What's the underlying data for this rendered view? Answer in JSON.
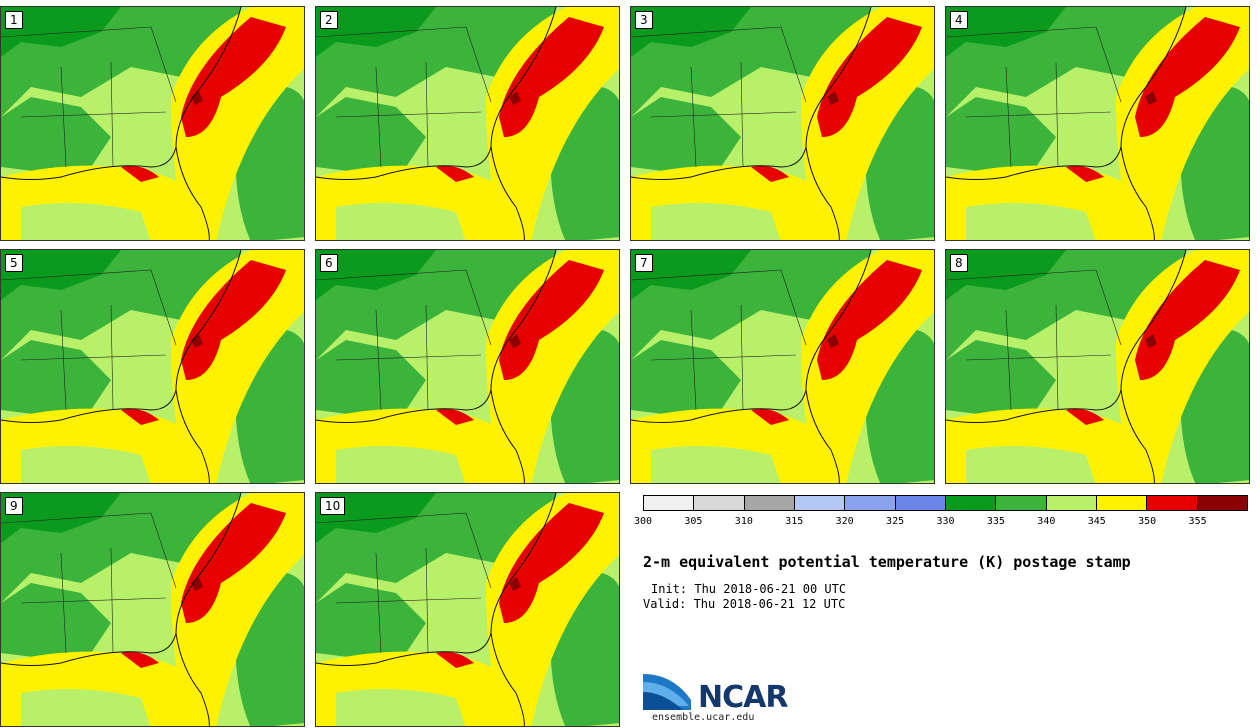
{
  "panels": [
    {
      "label": "1"
    },
    {
      "label": "2"
    },
    {
      "label": "3"
    },
    {
      "label": "4"
    },
    {
      "label": "5"
    },
    {
      "label": "6"
    },
    {
      "label": "7"
    },
    {
      "label": "8"
    },
    {
      "label": "9"
    },
    {
      "label": "10"
    }
  ],
  "colorbar": {
    "colors": [
      "#f0f0f0",
      "#d9d9d9",
      "#a6a6a6",
      "#b4c8f5",
      "#8aa3f0",
      "#6b86ea",
      "#0a9a1e",
      "#3cb43c",
      "#b9f06a",
      "#fff200",
      "#e60000",
      "#8b0000"
    ],
    "ticks": [
      "300",
      "305",
      "310",
      "315",
      "320",
      "325",
      "330",
      "335",
      "340",
      "345",
      "350",
      "355"
    ]
  },
  "title": "2-m equivalent potential temperature (K) postage stamp",
  "init": "Init: Thu 2018-06-21 00 UTC",
  "valid": "Valid: Thu 2018-06-21 12 UTC",
  "logo_text": "NCAR",
  "url": "ensemble.ucar.edu"
}
